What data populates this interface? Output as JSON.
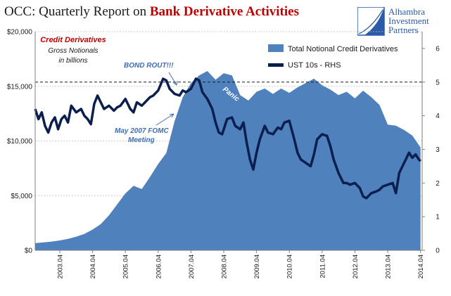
{
  "header": {
    "title_prefix": "OCC: Quarterly Report on ",
    "title_accent": "Bank Derivative Activities"
  },
  "brand": {
    "line1": "Alhambra",
    "line2": "Investment",
    "line3": "Partners"
  },
  "colors": {
    "area": "#4f81bd",
    "line": "#0b1f4f",
    "accent": "#c00000",
    "annotation": "#3f6fb0",
    "brand": "#2a5aa8"
  },
  "chart_data": {
    "type": "area",
    "title": "",
    "left_axis": {
      "ticks": [
        0,
        5000,
        10000,
        15000,
        20000
      ],
      "tick_labels": [
        "$0",
        "$5,000",
        "$10,000",
        "$15,000",
        "$20,000"
      ],
      "ylim": [
        0,
        20000
      ]
    },
    "right_axis": {
      "ticks": [
        0,
        1,
        2,
        3,
        4,
        5,
        6
      ],
      "tick_labels": [
        "0",
        "1",
        "2",
        "3",
        "4",
        "5",
        "6"
      ],
      "ylim": [
        0,
        6.5
      ]
    },
    "x_axis": {
      "range": [
        2002.5,
        2014.3
      ],
      "ticks": [
        2003.25,
        2004.25,
        2005.25,
        2006.25,
        2007.25,
        2008.25,
        2009.25,
        2010.25,
        2011.25,
        2012.25,
        2013.25,
        2014.25
      ],
      "tick_labels": [
        "2003.04",
        "2004.04",
        "2005.04",
        "2006.04",
        "2007.04",
        "2008.04",
        "2009.04",
        "2010.04",
        "2011.04",
        "2012.04",
        "2013.04",
        "2014.04"
      ]
    },
    "series": [
      {
        "name": "Total Notional Credit Derivatives",
        "axis": "left",
        "kind": "area",
        "x": [
          2002.5,
          2002.75,
          2003.0,
          2003.25,
          2003.5,
          2003.75,
          2004.0,
          2004.25,
          2004.5,
          2004.75,
          2005.0,
          2005.25,
          2005.5,
          2005.75,
          2006.0,
          2006.25,
          2006.5,
          2006.75,
          2007.0,
          2007.25,
          2007.5,
          2007.75,
          2008.0,
          2008.25,
          2008.5,
          2008.75,
          2009.0,
          2009.25,
          2009.5,
          2009.75,
          2010.0,
          2010.25,
          2010.5,
          2010.75,
          2011.0,
          2011.25,
          2011.5,
          2011.75,
          2012.0,
          2012.25,
          2012.5,
          2012.75,
          2013.0,
          2013.25,
          2013.5,
          2013.75,
          2014.0,
          2014.25
        ],
        "values": [
          650,
          720,
          800,
          900,
          1050,
          1250,
          1500,
          1900,
          2400,
          3200,
          4200,
          5200,
          5900,
          5600,
          6700,
          7900,
          8900,
          11800,
          14000,
          15300,
          16000,
          16400,
          15600,
          16200,
          16000,
          14200,
          13700,
          14500,
          14800,
          14300,
          14800,
          14400,
          14900,
          15300,
          15700,
          15100,
          14700,
          14200,
          14500,
          13900,
          14600,
          14000,
          13300,
          11500,
          11400,
          11000,
          10500,
          9400
        ]
      },
      {
        "name": "UST 10s - RHS",
        "axis": "right",
        "kind": "line",
        "x": [
          2002.5,
          2002.6,
          2002.7,
          2002.8,
          2002.9,
          2003.0,
          2003.1,
          2003.2,
          2003.3,
          2003.4,
          2003.5,
          2003.6,
          2003.75,
          2003.9,
          2004.0,
          2004.1,
          2004.2,
          2004.3,
          2004.4,
          2004.5,
          2004.6,
          2004.75,
          2004.9,
          2005.0,
          2005.1,
          2005.25,
          2005.4,
          2005.5,
          2005.6,
          2005.75,
          2005.9,
          2006.0,
          2006.1,
          2006.25,
          2006.4,
          2006.5,
          2006.6,
          2006.75,
          2006.9,
          2007.0,
          2007.1,
          2007.25,
          2007.4,
          2007.5,
          2007.6,
          2007.75,
          2007.9,
          2008.0,
          2008.1,
          2008.2,
          2008.35,
          2008.5,
          2008.6,
          2008.75,
          2008.85,
          2008.95,
          2009.05,
          2009.15,
          2009.25,
          2009.35,
          2009.5,
          2009.6,
          2009.75,
          2009.9,
          2010.0,
          2010.1,
          2010.25,
          2010.4,
          2010.5,
          2010.6,
          2010.75,
          2010.9,
          2011.0,
          2011.1,
          2011.25,
          2011.4,
          2011.5,
          2011.6,
          2011.75,
          2011.9,
          2012.0,
          2012.1,
          2012.25,
          2012.4,
          2012.5,
          2012.6,
          2012.75,
          2012.9,
          2013.0,
          2013.1,
          2013.25,
          2013.4,
          2013.5,
          2013.6,
          2013.75,
          2013.9,
          2014.0,
          2014.1,
          2014.2,
          2014.25
        ],
        "values": [
          4.2,
          3.9,
          4.1,
          3.7,
          3.5,
          3.8,
          3.95,
          3.6,
          3.9,
          4.0,
          3.8,
          4.3,
          4.1,
          4.2,
          4.0,
          3.9,
          3.75,
          4.35,
          4.6,
          4.4,
          4.2,
          4.3,
          4.15,
          4.25,
          4.3,
          4.5,
          4.2,
          4.1,
          4.4,
          4.3,
          4.45,
          4.55,
          4.6,
          4.75,
          5.1,
          5.05,
          4.8,
          4.65,
          4.6,
          4.75,
          4.7,
          4.8,
          5.1,
          5.05,
          4.7,
          4.5,
          4.2,
          3.8,
          3.5,
          3.45,
          3.9,
          3.95,
          3.7,
          3.6,
          3.8,
          3.2,
          2.7,
          2.4,
          2.9,
          3.3,
          3.7,
          3.5,
          3.45,
          3.65,
          3.6,
          3.8,
          3.85,
          3.3,
          2.9,
          2.7,
          2.6,
          2.5,
          2.85,
          3.3,
          3.45,
          3.4,
          3.1,
          2.7,
          2.3,
          2.0,
          2.0,
          1.95,
          2.0,
          1.85,
          1.6,
          1.55,
          1.7,
          1.75,
          1.8,
          1.9,
          1.95,
          2.0,
          1.7,
          2.3,
          2.6,
          2.9,
          2.75,
          2.85,
          2.7,
          2.65
        ]
      }
    ],
    "reference_line": {
      "axis": "right",
      "value": 5,
      "style": "dashed"
    },
    "legend": {
      "placement": "top-right",
      "items": [
        "Total Notional Credit Derivatives",
        "UST 10s - RHS"
      ]
    },
    "annotations": {
      "credit_derivatives": "Credit Derivatives",
      "gross_notionals_1": "Gross Notionals",
      "gross_notionals_2": "in billions",
      "bond_rout": "BOND ROUT!!!",
      "fomc_1": "May 2007 FOMC",
      "fomc_2": "Meeting",
      "panic": "Panic"
    }
  }
}
